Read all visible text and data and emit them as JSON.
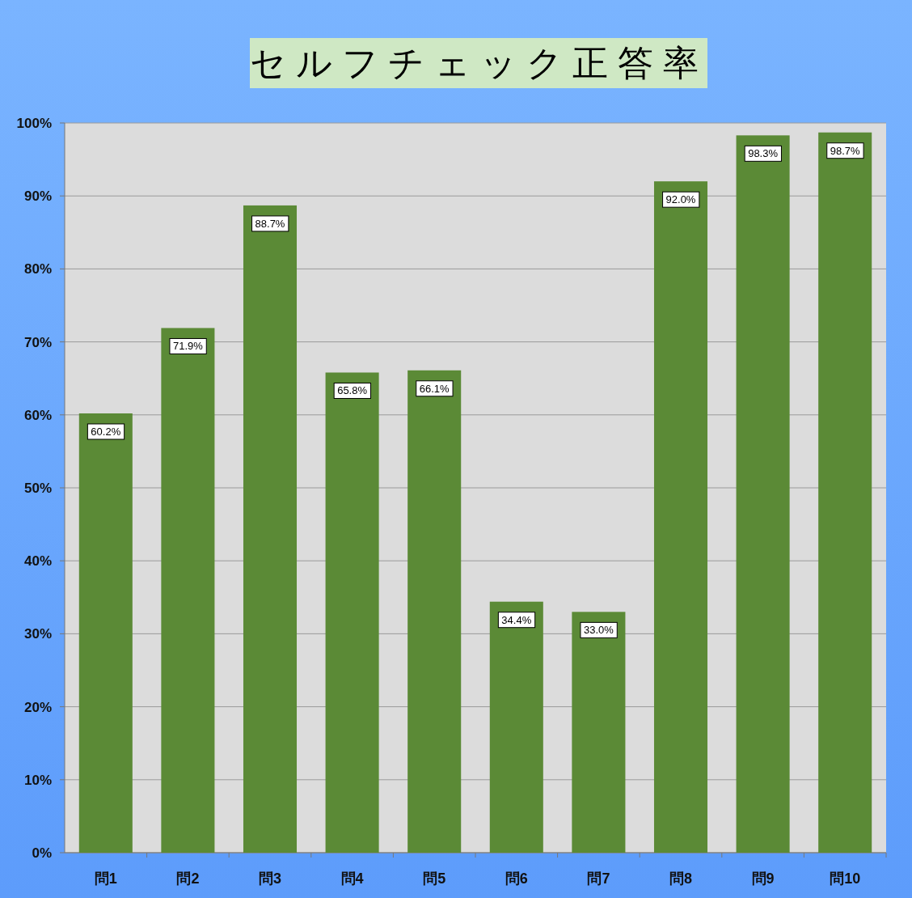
{
  "chart_data": {
    "type": "bar",
    "title": "セルフチェック正答率",
    "categories": [
      "問1",
      "問2",
      "問3",
      "問4",
      "問5",
      "問6",
      "問7",
      "問8",
      "問9",
      "問10"
    ],
    "values": [
      60.2,
      71.9,
      88.7,
      65.8,
      66.1,
      34.4,
      33.0,
      92.0,
      98.3,
      98.7
    ],
    "value_labels": [
      "60.2%",
      "71.9%",
      "88.7%",
      "65.8%",
      "66.1%",
      "34.4%",
      "33.0%",
      "92.0%",
      "98.3%",
      "98.7%"
    ],
    "color": "#5b8a36",
    "ylim": [
      0,
      100
    ],
    "yticks": [
      {
        "value": 0,
        "label": "0%"
      },
      {
        "value": 10,
        "label": "10%"
      },
      {
        "value": 20,
        "label": "20%"
      },
      {
        "value": 30,
        "label": "30%"
      },
      {
        "value": 40,
        "label": "40%"
      },
      {
        "value": 50,
        "label": "50%"
      },
      {
        "value": 60,
        "label": "60%"
      },
      {
        "value": 70,
        "label": "70%"
      },
      {
        "value": 80,
        "label": "80%"
      },
      {
        "value": 90,
        "label": "90%"
      },
      {
        "value": 100,
        "label": "100%"
      }
    ],
    "grid": "y"
  }
}
